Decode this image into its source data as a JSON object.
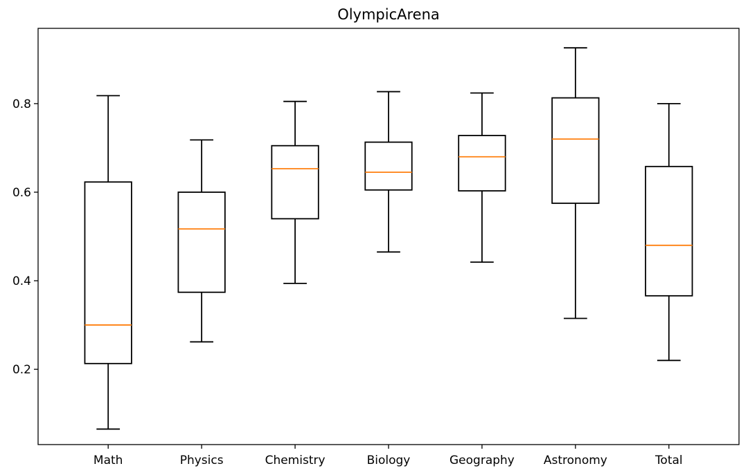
{
  "chart_data": {
    "type": "box",
    "title": "OlympicArena",
    "xlabel": "",
    "ylabel": "",
    "ylim": [
      0.03,
      0.97
    ],
    "yticks": [
      "0.2",
      "0.4",
      "0.6",
      "0.8"
    ],
    "ytick_values": [
      0.2,
      0.4,
      0.6,
      0.8
    ],
    "categories": [
      "Math",
      "Physics",
      "Chemistry",
      "Biology",
      "Geography",
      "Astronomy",
      "Total"
    ],
    "boxes": [
      {
        "category": "Math",
        "whislo": 0.065,
        "q1": 0.213,
        "med": 0.3,
        "q3": 0.623,
        "whishi": 0.818
      },
      {
        "category": "Physics",
        "whislo": 0.262,
        "q1": 0.374,
        "med": 0.517,
        "q3": 0.6,
        "whishi": 0.718
      },
      {
        "category": "Chemistry",
        "whislo": 0.394,
        "q1": 0.54,
        "med": 0.653,
        "q3": 0.705,
        "whishi": 0.805
      },
      {
        "category": "Biology",
        "whislo": 0.465,
        "q1": 0.605,
        "med": 0.645,
        "q3": 0.713,
        "whishi": 0.827
      },
      {
        "category": "Geography",
        "whislo": 0.442,
        "q1": 0.603,
        "med": 0.68,
        "q3": 0.728,
        "whishi": 0.824
      },
      {
        "category": "Astronomy",
        "whislo": 0.315,
        "q1": 0.575,
        "med": 0.72,
        "q3": 0.813,
        "whishi": 0.926
      },
      {
        "category": "Total",
        "whislo": 0.22,
        "q1": 0.366,
        "med": 0.48,
        "q3": 0.658,
        "whishi": 0.8
      }
    ],
    "grid": false,
    "legend": "none",
    "colors": {
      "box": "#000000",
      "median": "#ff7f0e"
    }
  }
}
